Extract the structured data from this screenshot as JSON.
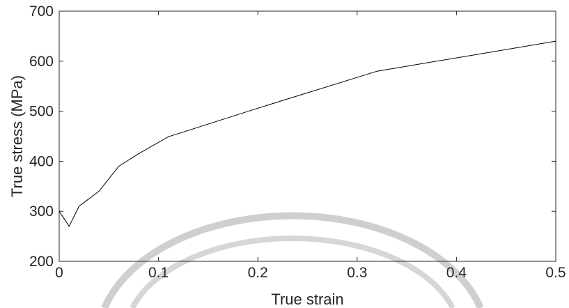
{
  "chart_data": {
    "type": "line",
    "title": "",
    "xlabel": "True strain",
    "ylabel": "True stress (MPa)",
    "xlim": [
      0,
      0.5
    ],
    "ylim": [
      200,
      700
    ],
    "xticks": [
      0,
      0.1,
      0.2,
      0.3,
      0.4,
      0.5
    ],
    "xtick_labels": [
      "0",
      "0.1",
      "0.2",
      "0.3",
      "0.4",
      "0.5"
    ],
    "yticks": [
      200,
      300,
      400,
      500,
      600,
      700
    ],
    "ytick_labels": [
      "200",
      "300",
      "400",
      "500",
      "600",
      "700"
    ],
    "grid": false,
    "series": [
      {
        "color": "#000000",
        "x": [
          0,
          0.01,
          0.02,
          0.04,
          0.06,
          0.08,
          0.11,
          0.2,
          0.32,
          0.5
        ],
        "y": [
          300,
          270,
          310,
          340,
          390,
          415,
          449,
          506,
          580,
          640
        ]
      }
    ]
  },
  "colors": {
    "axis": "#262626",
    "line": "#000000",
    "watermark": "#c8c8c8"
  }
}
